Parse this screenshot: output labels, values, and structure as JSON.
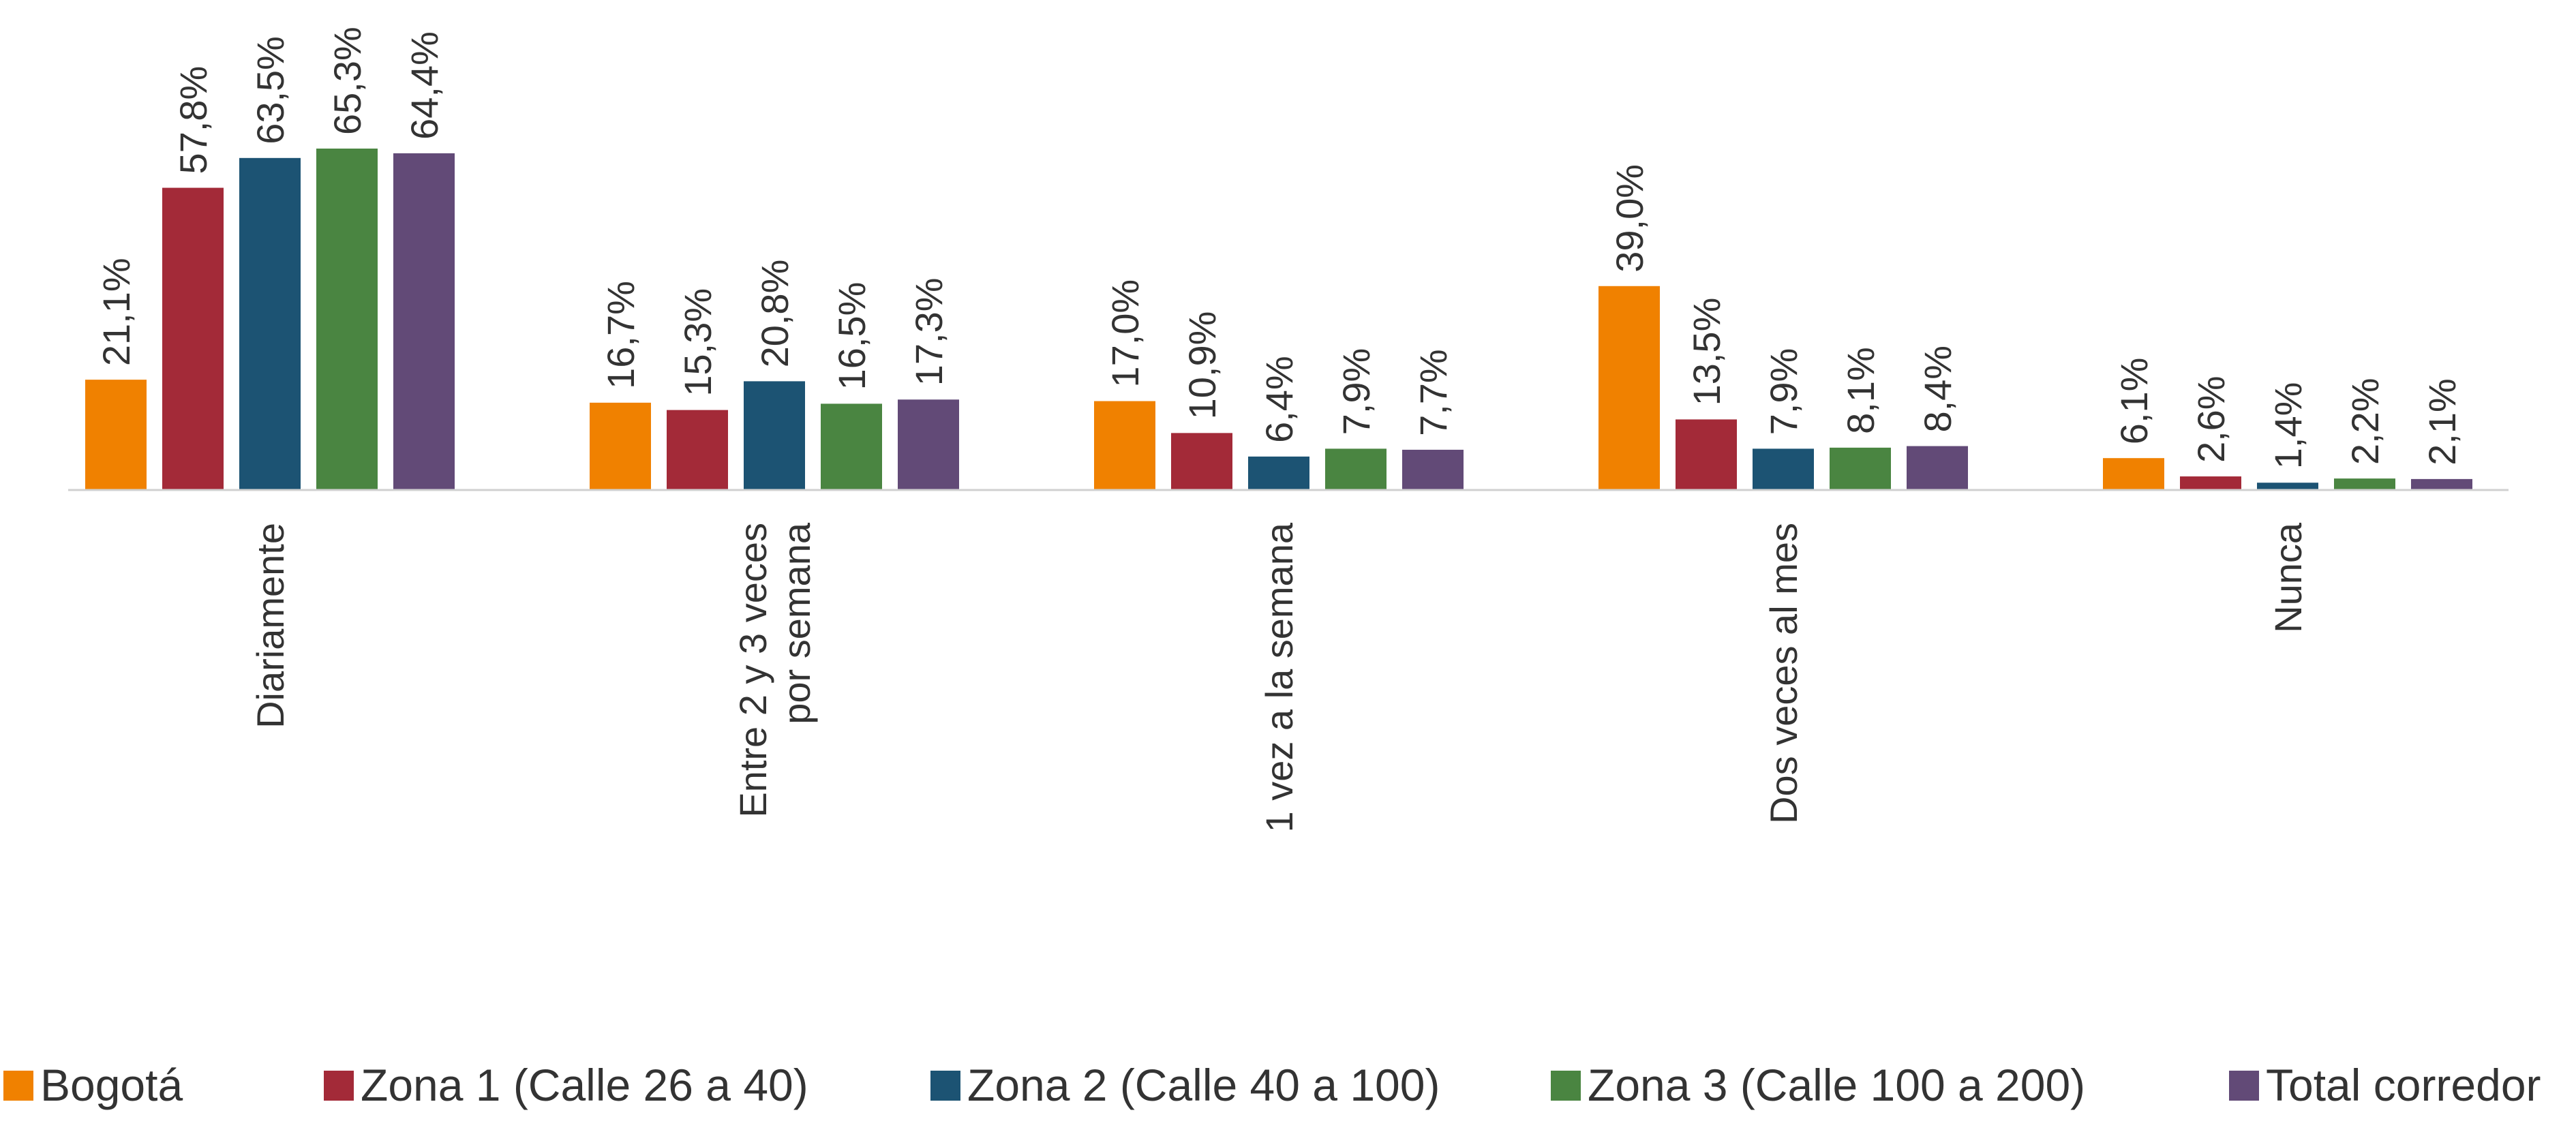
{
  "chart_data": {
    "type": "bar",
    "categories": [
      [
        "Diariamente"
      ],
      [
        "Entre 2 y 3 veces",
        "por semana"
      ],
      [
        "1 vez a la semana"
      ],
      [
        "Dos veces al mes"
      ],
      [
        "Nunca"
      ]
    ],
    "series": [
      {
        "name": "Bogotá",
        "color": "#F08100",
        "values": [
          21.1,
          16.7,
          17.0,
          39.0,
          6.1
        ],
        "labels": [
          "21,1%",
          "16,7%",
          "17,0%",
          "39,0%",
          "6,1%"
        ]
      },
      {
        "name": "Zona 1 (Calle 26 a 40)",
        "color": "#A32A38",
        "values": [
          57.8,
          15.3,
          10.9,
          13.5,
          2.6
        ],
        "labels": [
          "57,8%",
          "15,3%",
          "10,9%",
          "13,5%",
          "2,6%"
        ]
      },
      {
        "name": "Zona 2 (Calle 40 a 100)",
        "color": "#1C5373",
        "values": [
          63.5,
          20.8,
          6.4,
          7.9,
          1.4
        ],
        "labels": [
          "63,5%",
          "20,8%",
          "6,4%",
          "7,9%",
          "1,4%"
        ]
      },
      {
        "name": "Zona 3 (Calle 100 a 200)",
        "color": "#4A8541",
        "values": [
          65.3,
          16.5,
          7.9,
          8.1,
          2.2
        ],
        "labels": [
          "65,3%",
          "16,5%",
          "7,9%",
          "8,1%",
          "2,2%"
        ]
      },
      {
        "name": "Total corredor",
        "color": "#624A77",
        "values": [
          64.4,
          17.3,
          7.7,
          8.4,
          2.1
        ],
        "labels": [
          "64,4%",
          "17,3%",
          "7,7%",
          "8,4%",
          "2,1%"
        ]
      }
    ],
    "title": "",
    "xlabel": "",
    "ylabel": "",
    "ylim": [
      0,
      65.3
    ],
    "grid": false,
    "legend_position": "bottom",
    "data_labels_rotated": true,
    "category_labels_rotated": true
  }
}
